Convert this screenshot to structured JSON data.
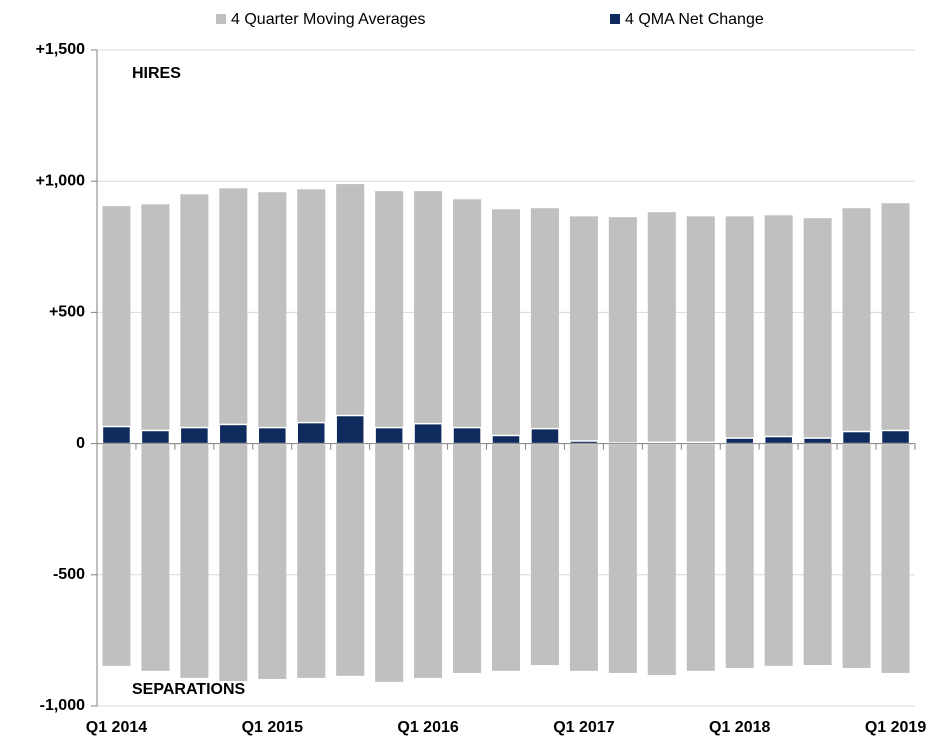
{
  "chart_data": {
    "type": "bar",
    "categories": [
      "Q1 2014",
      null,
      null,
      null,
      "Q1 2015",
      null,
      null,
      null,
      "Q1 2016",
      null,
      null,
      null,
      "Q1 2017",
      null,
      null,
      null,
      "Q1 2018",
      null,
      null,
      null,
      "Q1 2019"
    ],
    "series": [
      {
        "name": "4 Quarter Moving Averages",
        "color": "#c0c0c0",
        "values": [
          905,
          912,
          950,
          973,
          958,
          969,
          989,
          962,
          962,
          931,
          893,
          897,
          866,
          863,
          882,
          866,
          866,
          870,
          859,
          897,
          916
        ],
        "values_below": [
          -847,
          -866,
          -893,
          -905,
          -897,
          -893,
          -885,
          -908,
          -893,
          -874,
          -866,
          -844,
          -866,
          -874,
          -882,
          -866,
          -855,
          -847,
          -844,
          -855,
          -874
        ]
      },
      {
        "name": "4 QMA Net Change",
        "color": "#0f2a5c",
        "values": [
          65,
          50,
          61,
          73,
          61,
          80,
          107,
          61,
          76,
          61,
          31,
          57,
          10,
          2,
          5,
          5,
          21,
          27,
          21,
          46,
          50
        ]
      }
    ],
    "annotations": [
      "HIRES",
      "SEPARATIONS"
    ],
    "ylim": [
      -1000,
      1500
    ],
    "yticks": [
      {
        "value": -1000,
        "label": "-1,000"
      },
      {
        "value": -500,
        "label": "-500"
      },
      0,
      {
        "value": 500,
        "label": "+500"
      },
      {
        "value": 1000,
        "label": "+1,000"
      },
      {
        "value": 1500,
        "label": "+1,500"
      }
    ],
    "grid": true,
    "negative_tick_color": "#e00000"
  }
}
